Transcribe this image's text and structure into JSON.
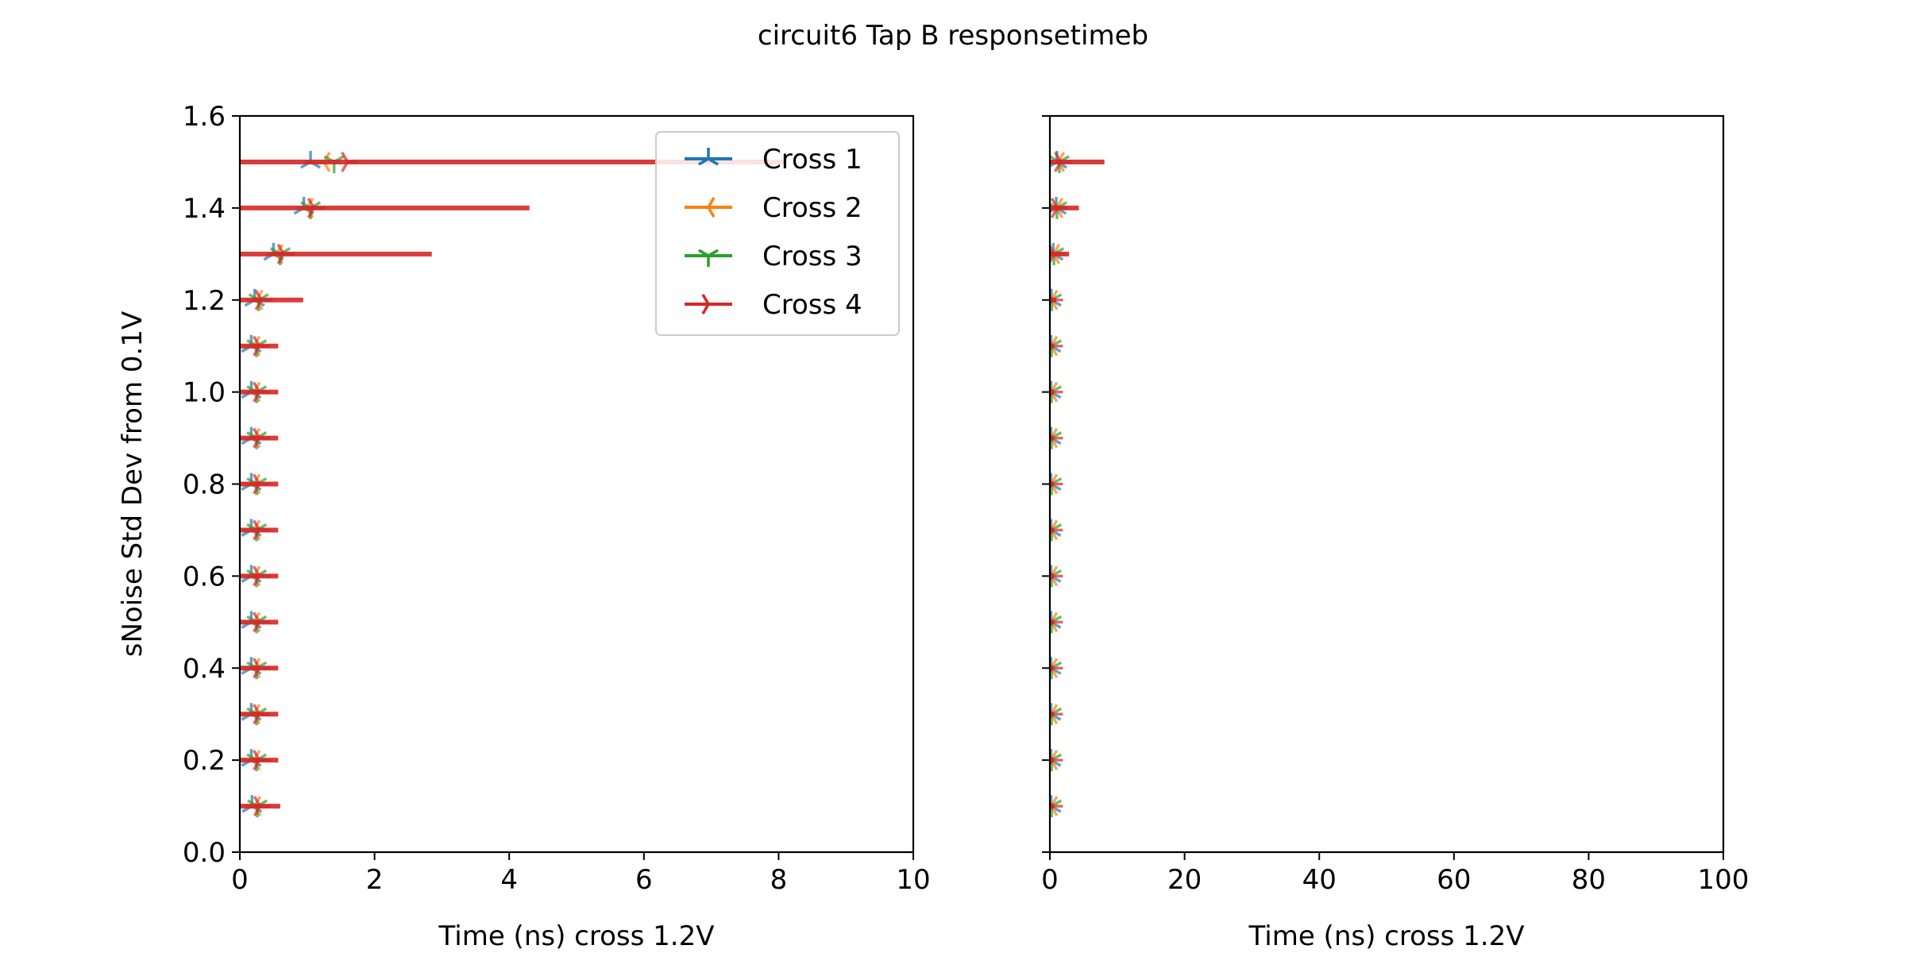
{
  "figure_title": "circuit6 Tap B responsetimeb",
  "colors": {
    "cross1": "#1f77b4",
    "cross2": "#ff7f0e",
    "cross3": "#2ca02c",
    "cross4": "#d62728"
  },
  "chart_data": [
    {
      "type": "scatter",
      "panel": "left",
      "title": "",
      "xlabel": "Time (ns) cross 1.2V",
      "ylabel": "sNoise Std Dev from 0.1V",
      "xlim": [
        0,
        10
      ],
      "ylim": [
        0,
        1.6
      ],
      "xticks": [
        "0",
        "2",
        "4",
        "6",
        "8",
        "10"
      ],
      "yticks": [
        "0.0",
        "0.2",
        "0.4",
        "0.6",
        "0.8",
        "1.0",
        "1.2",
        "1.4",
        "1.6"
      ],
      "grid": false,
      "legend": {
        "position": "top-right",
        "entries": [
          "Cross 1",
          "Cross 2",
          "Cross 3",
          "Cross 4"
        ]
      },
      "y": [
        0.1,
        0.2,
        0.3,
        0.4,
        0.5,
        0.6,
        0.7,
        0.8,
        0.9,
        1.0,
        1.1,
        1.2,
        1.3,
        1.4,
        1.5
      ],
      "series": [
        {
          "name": "Cross 1",
          "x": [
            0.18,
            0.17,
            0.17,
            0.17,
            0.17,
            0.17,
            0.17,
            0.17,
            0.17,
            0.17,
            0.17,
            0.22,
            0.5,
            0.95,
            1.05
          ],
          "xerr": [
            0.05,
            0.03,
            0.03,
            0.03,
            0.03,
            0.03,
            0.03,
            0.03,
            0.03,
            0.03,
            0.03,
            0.04,
            0.05,
            0.08,
            0.1
          ]
        },
        {
          "name": "Cross 2",
          "x": [
            0.22,
            0.21,
            0.21,
            0.21,
            0.21,
            0.21,
            0.21,
            0.21,
            0.21,
            0.21,
            0.21,
            0.25,
            0.55,
            1.0,
            1.25
          ],
          "xerr": [
            0.05,
            0.03,
            0.03,
            0.03,
            0.03,
            0.03,
            0.03,
            0.03,
            0.03,
            0.03,
            0.03,
            0.04,
            0.05,
            0.08,
            0.1
          ]
        },
        {
          "name": "Cross 3",
          "x": [
            0.26,
            0.25,
            0.25,
            0.25,
            0.25,
            0.25,
            0.25,
            0.25,
            0.25,
            0.25,
            0.25,
            0.28,
            0.6,
            1.05,
            1.4
          ],
          "xerr": [
            0.05,
            0.03,
            0.03,
            0.03,
            0.03,
            0.03,
            0.03,
            0.03,
            0.03,
            0.03,
            0.03,
            0.04,
            0.05,
            0.08,
            0.1
          ]
        },
        {
          "name": "Cross 4",
          "x": [
            0.3,
            0.29,
            0.29,
            0.29,
            0.29,
            0.29,
            0.29,
            0.29,
            0.29,
            0.29,
            0.29,
            0.32,
            0.65,
            1.1,
            1.6
          ],
          "xerr": [
            0.3,
            0.28,
            0.28,
            0.28,
            0.28,
            0.28,
            0.28,
            0.28,
            0.28,
            0.28,
            0.28,
            0.62,
            2.2,
            3.2,
            6.5
          ]
        }
      ]
    },
    {
      "type": "scatter",
      "panel": "right",
      "title": "",
      "xlabel": "Time (ns) cross 1.2V",
      "ylabel": "",
      "xlim": [
        0,
        100
      ],
      "ylim": [
        0,
        1.6
      ],
      "xticks": [
        "0",
        "20",
        "40",
        "60",
        "80",
        "100"
      ],
      "yticks": [],
      "grid": false,
      "y": [
        0.1,
        0.2,
        0.3,
        0.4,
        0.5,
        0.6,
        0.7,
        0.8,
        0.9,
        1.0,
        1.1,
        1.2,
        1.3,
        1.4,
        1.5
      ],
      "series": [
        {
          "name": "Cross 1",
          "x": [
            0.18,
            0.17,
            0.17,
            0.17,
            0.17,
            0.17,
            0.17,
            0.17,
            0.17,
            0.17,
            0.17,
            0.22,
            0.5,
            0.95,
            1.05
          ],
          "xerr": [
            0.05,
            0.03,
            0.03,
            0.03,
            0.03,
            0.03,
            0.03,
            0.03,
            0.03,
            0.03,
            0.03,
            0.04,
            0.05,
            0.08,
            0.1
          ]
        },
        {
          "name": "Cross 2",
          "x": [
            0.22,
            0.21,
            0.21,
            0.21,
            0.21,
            0.21,
            0.21,
            0.21,
            0.21,
            0.21,
            0.21,
            0.25,
            0.55,
            1.0,
            1.25
          ],
          "xerr": [
            0.05,
            0.03,
            0.03,
            0.03,
            0.03,
            0.03,
            0.03,
            0.03,
            0.03,
            0.03,
            0.03,
            0.04,
            0.05,
            0.08,
            0.1
          ]
        },
        {
          "name": "Cross 3",
          "x": [
            0.26,
            0.25,
            0.25,
            0.25,
            0.25,
            0.25,
            0.25,
            0.25,
            0.25,
            0.25,
            0.25,
            0.28,
            0.6,
            1.05,
            1.4
          ],
          "xerr": [
            0.05,
            0.03,
            0.03,
            0.03,
            0.03,
            0.03,
            0.03,
            0.03,
            0.03,
            0.03,
            0.03,
            0.04,
            0.05,
            0.08,
            0.1
          ]
        },
        {
          "name": "Cross 4",
          "x": [
            0.3,
            0.29,
            0.29,
            0.29,
            0.29,
            0.29,
            0.29,
            0.29,
            0.29,
            0.29,
            0.29,
            0.32,
            0.65,
            1.1,
            1.6
          ],
          "xerr": [
            0.3,
            0.28,
            0.28,
            0.28,
            0.28,
            0.28,
            0.28,
            0.28,
            0.28,
            0.28,
            0.28,
            0.62,
            2.2,
            3.2,
            6.5
          ]
        }
      ]
    }
  ]
}
